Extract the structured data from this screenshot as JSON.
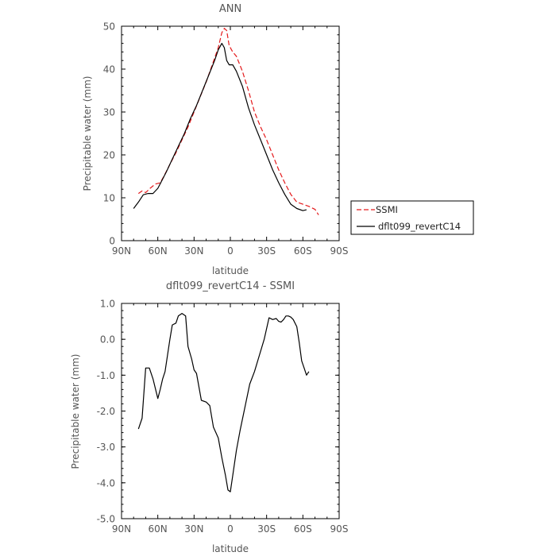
{
  "chart_data": [
    {
      "type": "line",
      "title": "ANN",
      "xlabel": "latitude",
      "ylabel": "Precipitable water (mm)",
      "xlim": [
        90,
        -90
      ],
      "ylim": [
        0,
        50
      ],
      "xticks": [
        90,
        60,
        30,
        0,
        -30,
        -60,
        -90
      ],
      "xtick_labels": [
        "90N",
        "60N",
        "30N",
        "0",
        "30S",
        "60S",
        "90S"
      ],
      "yticks": [
        0,
        10,
        20,
        30,
        40,
        50
      ],
      "ytick_labels": [
        "0",
        "10",
        "20",
        "30",
        "40",
        "50"
      ],
      "grid": false,
      "legend_position": "right",
      "series": [
        {
          "name": "SSMI",
          "color": "#e41a1c",
          "dash": "dashed",
          "x": [
            76,
            73,
            70,
            66,
            62,
            58,
            55,
            50,
            45,
            40,
            35,
            30,
            25,
            20,
            15,
            10,
            7,
            5,
            3,
            1,
            -2,
            -5,
            -10,
            -15,
            -20,
            -25,
            -30,
            -35,
            -40,
            -45,
            -50,
            -55,
            -60,
            -65,
            -70,
            -73
          ],
          "y": [
            11,
            11.6,
            11.2,
            12.3,
            13.2,
            13.5,
            15.0,
            17.8,
            20.5,
            23.5,
            26.5,
            30.0,
            33.5,
            37.0,
            41.0,
            45.0,
            48.5,
            49.5,
            49.0,
            45.5,
            44.0,
            43.0,
            39.5,
            35.0,
            30.0,
            26.5,
            23.5,
            20.0,
            16.5,
            13.5,
            10.8,
            9.0,
            8.5,
            8.0,
            7.3,
            6.0
          ]
        },
        {
          "name": "dflt099_revertC14",
          "color": "#000000",
          "dash": "solid",
          "x": [
            80,
            76,
            72,
            68,
            64,
            60,
            57,
            53,
            48,
            43,
            38,
            33,
            28,
            23,
            18,
            13,
            10,
            7,
            5,
            3,
            1,
            -2,
            -5,
            -10,
            -15,
            -20,
            -25,
            -30,
            -35,
            -40,
            -45,
            -50,
            -55,
            -60,
            -63
          ],
          "y": [
            7.5,
            9.0,
            10.7,
            11.0,
            11.0,
            12.2,
            13.8,
            16.0,
            19.0,
            22.0,
            25.0,
            28.5,
            31.5,
            35.0,
            38.5,
            42.0,
            44.5,
            46.0,
            45.0,
            42.0,
            41.0,
            41.0,
            39.5,
            36.0,
            31.0,
            27.0,
            23.5,
            20.0,
            16.5,
            13.5,
            10.8,
            8.5,
            7.5,
            7.0,
            7.2
          ]
        }
      ]
    },
    {
      "type": "line",
      "title": "dflt099_revertC14 - SSMI",
      "xlabel": "latitude",
      "ylabel": "Precipitable water (mm)",
      "xlim": [
        90,
        -90
      ],
      "ylim": [
        -5.0,
        1.0
      ],
      "xticks": [
        90,
        60,
        30,
        0,
        -30,
        -60,
        -90
      ],
      "xtick_labels": [
        "90N",
        "60N",
        "30N",
        "0",
        "30S",
        "60S",
        "90S"
      ],
      "yticks": [
        1.0,
        0.0,
        -1.0,
        -2.0,
        -3.0,
        -4.0,
        -5.0
      ],
      "ytick_labels": [
        "1.0",
        "0.0",
        "-1.0",
        "-2.0",
        "-3.0",
        "-4.0",
        "-5.0"
      ],
      "grid": false,
      "series": [
        {
          "name": "",
          "color": "#000000",
          "dash": "solid",
          "x": [
            76,
            73,
            70,
            67,
            64,
            60,
            58,
            56,
            54,
            50,
            48,
            45,
            43,
            40,
            37,
            35,
            32,
            30,
            28,
            24,
            20,
            17,
            14,
            10,
            7,
            4,
            2,
            0,
            -2,
            -5,
            -8,
            -12,
            -16,
            -20,
            -24,
            -28,
            -32,
            -35,
            -38,
            -40,
            -42,
            -44,
            -46,
            -48,
            -50,
            -52,
            -55,
            -57,
            -59,
            -61,
            -63,
            -65
          ],
          "y": [
            -2.5,
            -2.2,
            -0.8,
            -0.8,
            -1.1,
            -1.65,
            -1.4,
            -1.1,
            -0.9,
            0.0,
            0.4,
            0.45,
            0.65,
            0.72,
            0.65,
            -0.2,
            -0.55,
            -0.85,
            -0.95,
            -1.7,
            -1.75,
            -1.85,
            -2.45,
            -2.75,
            -3.3,
            -3.8,
            -4.2,
            -4.25,
            -3.8,
            -3.1,
            -2.55,
            -1.9,
            -1.25,
            -0.9,
            -0.45,
            0.0,
            0.6,
            0.55,
            0.58,
            0.5,
            0.48,
            0.55,
            0.65,
            0.65,
            0.62,
            0.55,
            0.35,
            -0.1,
            -0.6,
            -0.8,
            -1.0,
            -0.9
          ]
        }
      ]
    }
  ]
}
